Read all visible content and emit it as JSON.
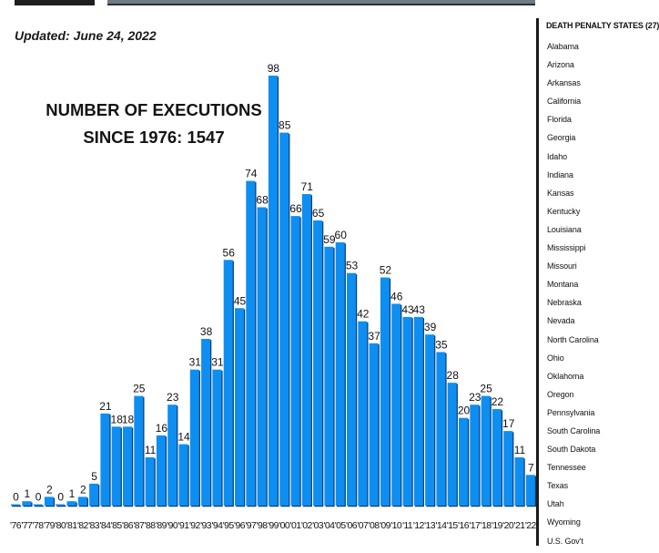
{
  "updated": "Updated: June 24, 2022",
  "title_line1": "NUMBER OF EXECUTIONS",
  "title_line2": "SINCE 1976: 1547",
  "colors": {
    "bar": "#0e8ef0",
    "bar_shadow": "#0a3a78",
    "background": "#ffffff"
  },
  "chart_data": {
    "type": "bar",
    "title": "NUMBER OF EXECUTIONS SINCE 1976: 1547",
    "xlabel": "",
    "ylabel": "",
    "ylim": [
      0,
      100
    ],
    "grid": false,
    "categories": [
      "'76",
      "'77",
      "'78",
      "'79",
      "'80",
      "'81",
      "'82",
      "'83",
      "'84",
      "'85",
      "'86",
      "'87",
      "'88",
      "'89",
      "'90",
      "'91",
      "'92",
      "'93",
      "'94",
      "'95",
      "'96",
      "'97",
      "'98",
      "'99",
      "'00",
      "'01",
      "'02",
      "'03",
      "'04",
      "'05",
      "'06",
      "'07",
      "'08",
      "'09",
      "'10",
      "'11",
      "'12",
      "'13",
      "'14",
      "'15",
      "'16",
      "'17",
      "'18",
      "'19",
      "'20",
      "'21",
      "'22"
    ],
    "values": [
      0,
      1,
      0,
      2,
      0,
      1,
      2,
      5,
      21,
      18,
      18,
      25,
      11,
      16,
      23,
      14,
      31,
      38,
      31,
      56,
      45,
      74,
      68,
      98,
      85,
      66,
      71,
      65,
      59,
      60,
      53,
      42,
      37,
      52,
      46,
      43,
      43,
      39,
      35,
      28,
      20,
      23,
      25,
      22,
      17,
      11,
      7
    ]
  },
  "sidebar": {
    "heading": "DEATH PENALTY STATES (27)",
    "states": [
      "Alabama",
      "Arizona",
      "Arkansas",
      "California",
      "Florida",
      "Georgia",
      "Idaho",
      "Indiana",
      "Kansas",
      "Kentucky",
      "Louisiana",
      "Mississippi",
      "Missouri",
      "Montana",
      "Nebraska",
      "Nevada",
      "North Carolina",
      "Ohio",
      "Oklahoma",
      "Oregon",
      "Pennsylvania",
      "South Carolina",
      "South Dakota",
      "Tennessee",
      "Texas",
      "Utah",
      "Wyoming",
      "U.S. Gov't"
    ]
  }
}
